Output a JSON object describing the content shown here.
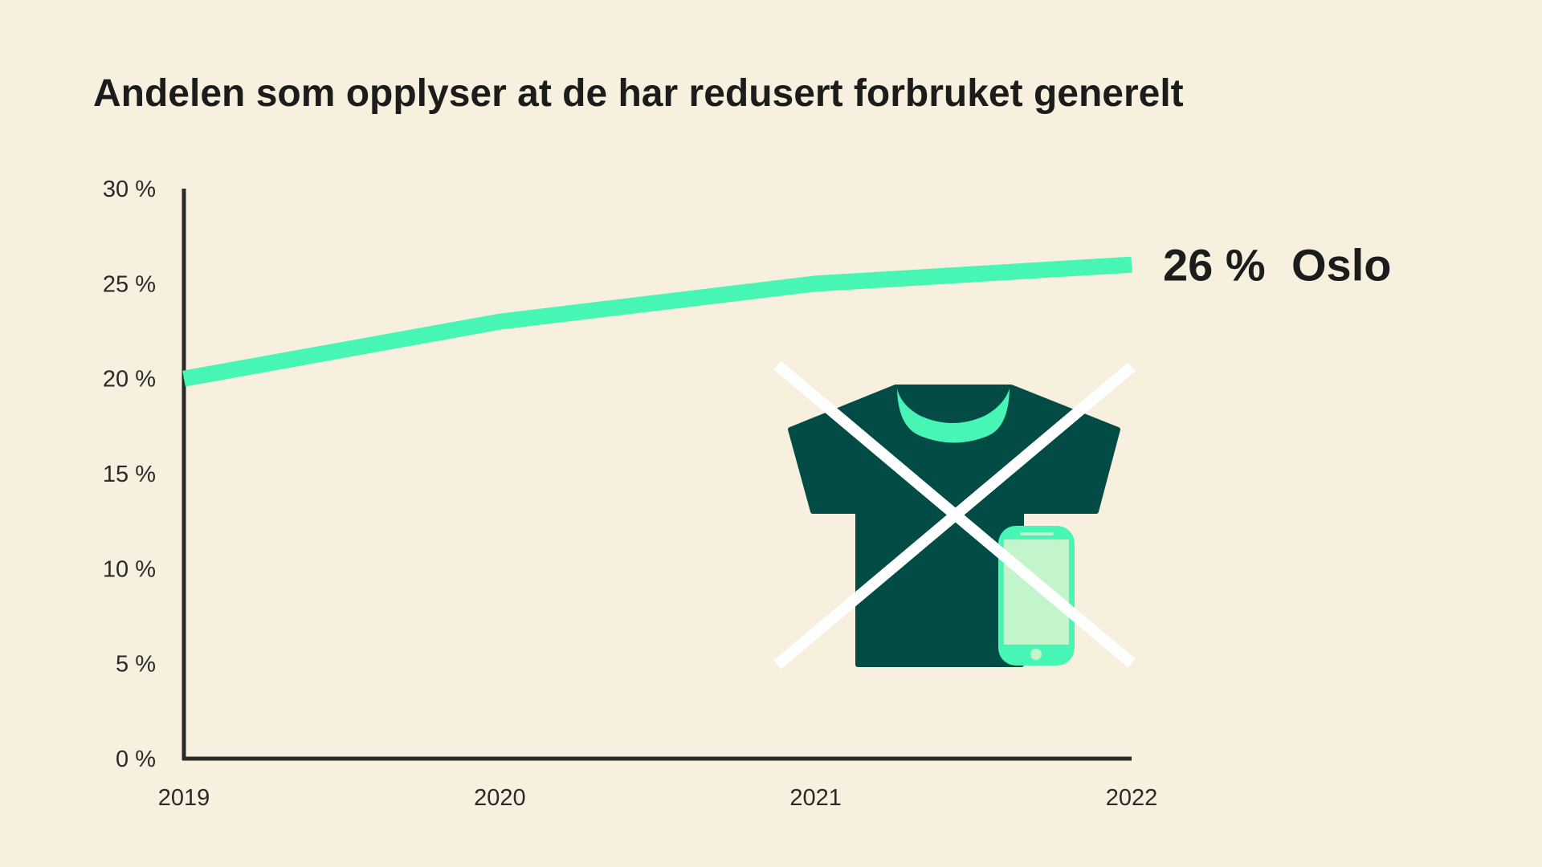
{
  "chart_data": {
    "type": "line",
    "title": "Andelen som opplyser at de har redusert forbruket generelt",
    "x": [
      "2019",
      "2020",
      "2021",
      "2022"
    ],
    "series": [
      {
        "name": "Oslo",
        "values": [
          20,
          23,
          25,
          26
        ]
      }
    ],
    "ylim": [
      0,
      30
    ],
    "yticks": [
      0,
      5,
      10,
      15,
      20,
      25,
      30
    ],
    "ytick_labels": [
      "0 %",
      "5 %",
      "10 %",
      "15 %",
      "20 %",
      "25 %",
      "30 %"
    ],
    "grid": false,
    "end_label": {
      "value": "26 %",
      "series": "Oslo"
    },
    "colors": {
      "background": "#f8f0de",
      "line": "#47f5b5",
      "axis": "#2a2a2a",
      "shirt": "#034c46",
      "phone_frame": "#47f5b5",
      "phone_screen": "#c3f5cc",
      "cross": "#ffffff"
    },
    "illustration": {
      "icons": [
        "t-shirt-icon",
        "smartphone-icon",
        "cross-icon"
      ]
    }
  }
}
